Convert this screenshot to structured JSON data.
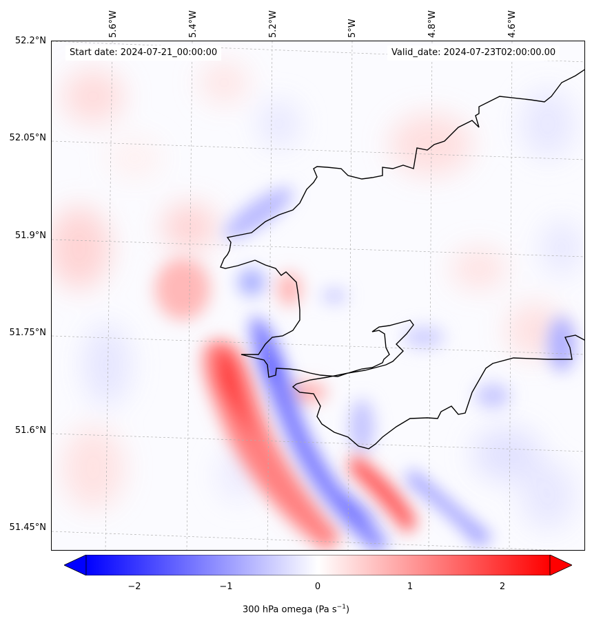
{
  "map": {
    "start_date": "Start date: 2024-07-21_00:00:00",
    "valid_date": "Valid_date: 2024-07-23T02:00:00.00",
    "lat_labels": [
      "52.2°N",
      "52.05°N",
      "51.9°N",
      "51.75°N",
      "51.6°N",
      "51.45°N"
    ],
    "lon_labels": [
      "5.6°W",
      "5.4°W",
      "5.2°W",
      "5°W",
      "4.8°W",
      "4.6°W"
    ],
    "field": "300 hPa omega",
    "colormap": "bwr",
    "colors": {
      "min": "#0000ff",
      "mid": "#ffffff",
      "max": "#ff0000",
      "coast": "#000000",
      "grid": "#b0b0b0"
    }
  },
  "colorbar": {
    "label": "300 hPa omega (Pa s",
    "label_sup": "−1",
    "label_close": ")",
    "ticks": [
      "−2",
      "−1",
      "0",
      "1",
      "2"
    ],
    "range": [
      -2.5,
      2.5
    ],
    "extend": "both"
  }
}
